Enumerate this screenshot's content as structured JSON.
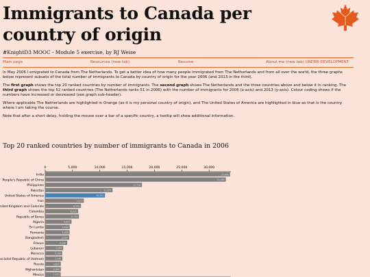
{
  "header": {
    "title": "Immigrants to Canada per country of origin",
    "subtitle": "#KnightD3 MOOC - Module 5 exercise, by RJ Weise"
  },
  "nav": {
    "items": [
      {
        "label": "Main page"
      },
      {
        "label": "Resources (new tab)"
      },
      {
        "label": "Resume"
      },
      {
        "label": "About me (new tab) UNDER DEVELOPMENT"
      }
    ]
  },
  "intro": {
    "p1": "In May 2006 I emigrated to Canada from The Netherlands. To get a better idea of how many people immigrated from The Netherlands and from all over the world, the three graphs below represent subsets of the total number of immigrants to Canada by country of origin for the year 2006 (and 2013 in the third).",
    "p2": {
      "pre": "The ",
      "b1": "first graph",
      "t1": " shows the top 20 ranked countries by number of immigrants. The ",
      "b2": "second graph",
      "t2": " shows The Netherlands and the three countries above and below it in ranking. The ",
      "b3": "third graph",
      "t3": " shows the top 52 ranked countries (The Netherlands ranks 51 in 2006) with the number of immigrants for 2006 (x-axis) and 2013 (y-axis). Colour coding shows if the numbers have increased or decreased (see graph sub-header)."
    },
    "p3": "Where applicable The Netherlands are highlighted in Orange (as it is my personal country of origin), and The United States of America are highlighted in blue as that is the country where I am taking the course.",
    "p4": "Note that after a short delay, holding the mouse over a bar of a specific country, a tooltip will show additional information."
  },
  "chart_title": "Top 20 ranked countries by number of immigrants to Canada in 2006",
  "colors": {
    "accent": "#e2652c",
    "bar": "#808080",
    "highlight_usa": "#4682b4",
    "background": "#fbe3d9"
  },
  "chart_data": {
    "type": "bar",
    "orientation": "horizontal",
    "title": "Top 20 ranked countries by number of immigrants to Canada in 2006",
    "xlim": [
      0,
      34000
    ],
    "x_ticks": [
      "0",
      "5,000",
      "10,000",
      "15,000",
      "20,000",
      "25,000",
      "30,000"
    ],
    "x_tick_values": [
      0,
      5000,
      10000,
      15000,
      20000,
      25000,
      30000
    ],
    "categories": [
      "India",
      "People's Republic of China",
      "Philippines",
      "Pakistan",
      "United States of America",
      "Iran",
      "United Kingdom and Colonies",
      "Colombia",
      "Republic of Korea",
      "Algeria",
      "Sri Lanka",
      "Romania",
      "Bangladesh",
      "France",
      "Lebanon",
      "Morocco",
      "Socialist Republic of Vietnam",
      "Russia",
      "Afghanistan",
      "Mexico"
    ],
    "values": [
      33848,
      33080,
      17718,
      12329,
      10943,
      7073,
      6542,
      6031,
      6178,
      4807,
      4490,
      4468,
      4393,
      4026,
      3290,
      3109,
      3146,
      2852,
      2869,
      2830
    ],
    "highlight": {
      "United States of America": "#4682b4"
    }
  }
}
